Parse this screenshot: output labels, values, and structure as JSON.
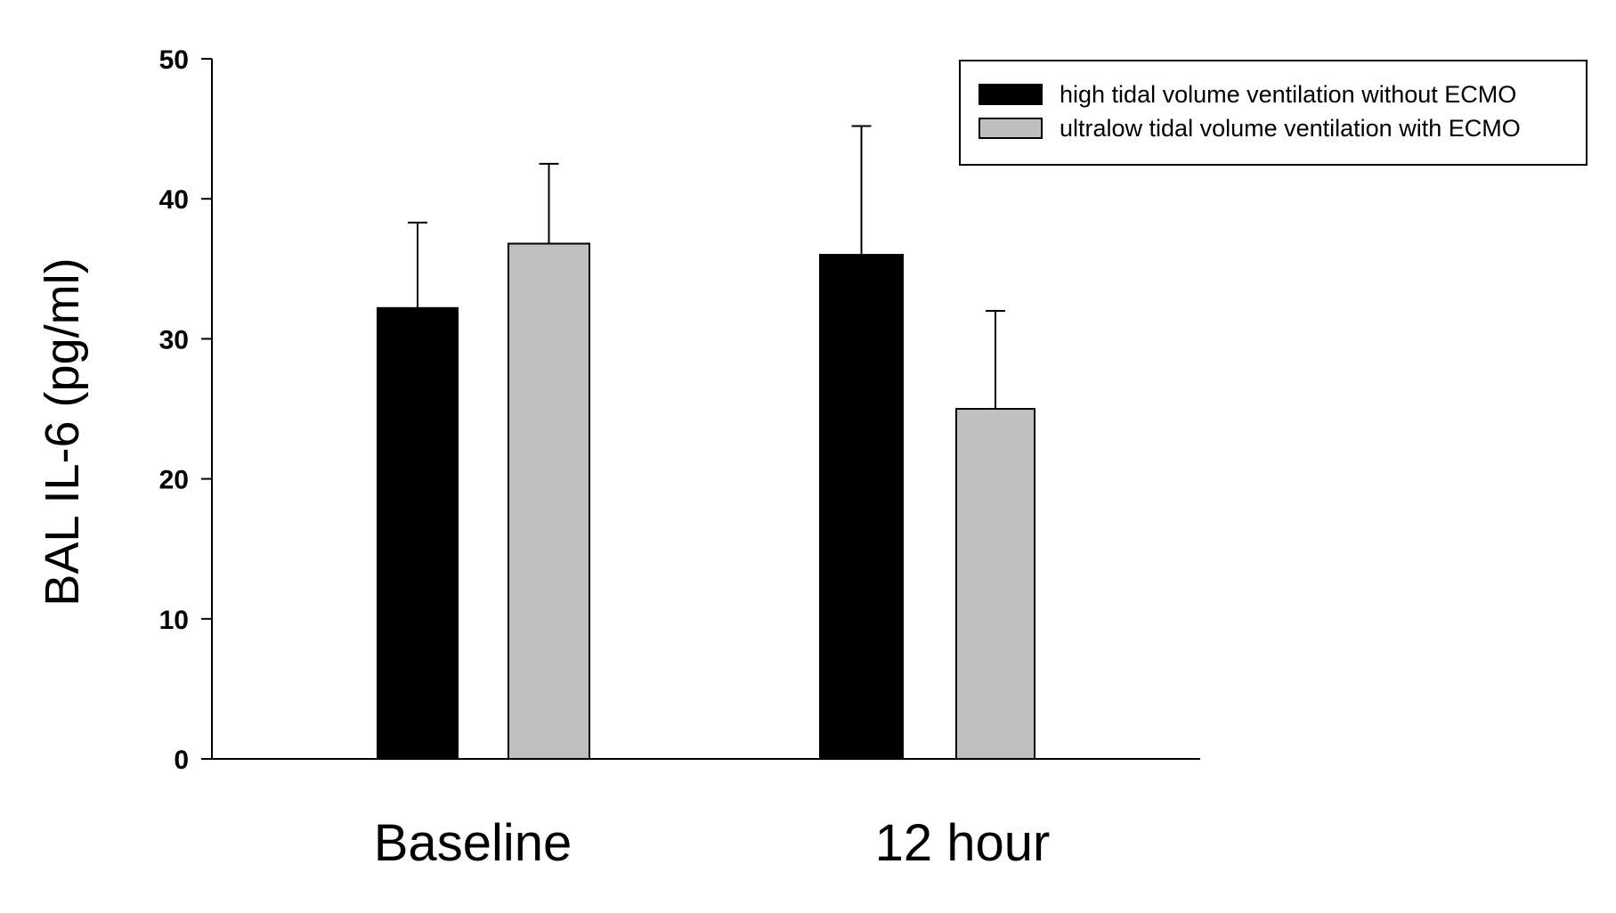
{
  "chart_data": {
    "type": "bar",
    "title": "",
    "xlabel": "",
    "ylabel": "BAL IL-6  (pg/ml)",
    "ylim": [
      0,
      50
    ],
    "yticks": [
      0,
      10,
      20,
      30,
      40,
      50
    ],
    "grid": false,
    "legend_position": "top-right",
    "categories": [
      "Baseline",
      "12 hour"
    ],
    "series": [
      {
        "name": "high tidal volume ventilation without ECMO",
        "color": "#000000",
        "values": [
          32.2,
          36.0
        ],
        "errors": [
          6.1,
          9.2
        ]
      },
      {
        "name": "ultralow tidal volume ventilation with ECMO",
        "color": "#c0c0c0",
        "values": [
          36.8,
          25.0
        ],
        "errors": [
          5.7,
          7.0
        ]
      }
    ]
  }
}
